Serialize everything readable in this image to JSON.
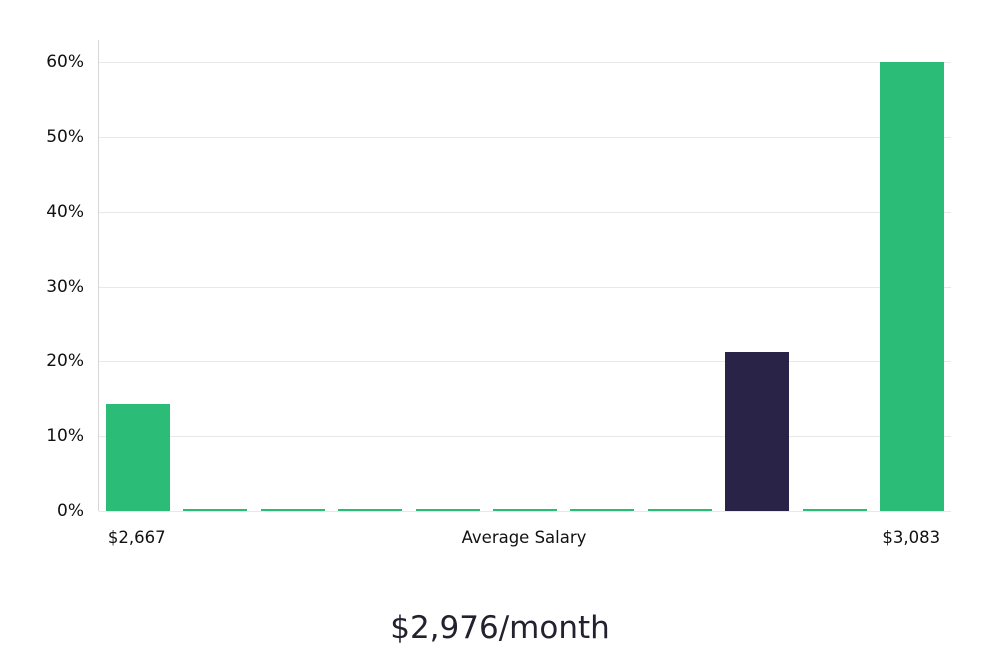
{
  "chart_data": {
    "type": "bar",
    "title": "$2,976/month",
    "xlabel": "Average Salary",
    "ylabel": "",
    "x_axis": {
      "left_label": "$2,667",
      "center_label": "Average Salary",
      "right_label": "$3,083"
    },
    "y_tick_labels": [
      "0%",
      "10%",
      "20%",
      "30%",
      "40%",
      "50%",
      "60%"
    ],
    "ylim": [
      0,
      63
    ],
    "grid": true,
    "legend": false,
    "values": [
      14.3,
      0.3,
      0.3,
      0.3,
      0.3,
      0.3,
      0.3,
      0.3,
      21.3,
      0.3,
      60.0
    ],
    "bar_color_keys": [
      "green",
      "green",
      "green",
      "green",
      "green",
      "green",
      "green",
      "green",
      "dark",
      "green",
      "green"
    ],
    "colors": {
      "green": "#2bbc77",
      "dark": "#282347"
    }
  }
}
